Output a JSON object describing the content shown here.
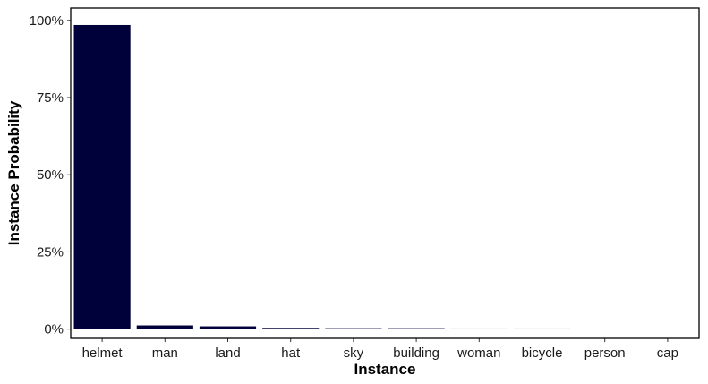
{
  "chart_data": {
    "type": "bar",
    "title": "",
    "xlabel": "Instance",
    "ylabel": "Instance Probability",
    "categories": [
      "helmet",
      "man",
      "land",
      "hat",
      "sky",
      "building",
      "woman",
      "bicycle",
      "person",
      "cap"
    ],
    "values": [
      0.985,
      0.012,
      0.009,
      0.004,
      0.003,
      0.003,
      0.002,
      0.002,
      0.001,
      0.001
    ],
    "ylim": [
      -0.03,
      1.04
    ],
    "yticks": [
      0,
      0.25,
      0.5,
      0.75,
      1.0
    ],
    "ytick_labels": [
      "0%",
      "25%",
      "50%",
      "75%",
      "100%"
    ],
    "grid": false,
    "legend": "none",
    "colors": {
      "bar": "#00003a",
      "panel_border": "#000000",
      "background": "#ffffff"
    }
  }
}
